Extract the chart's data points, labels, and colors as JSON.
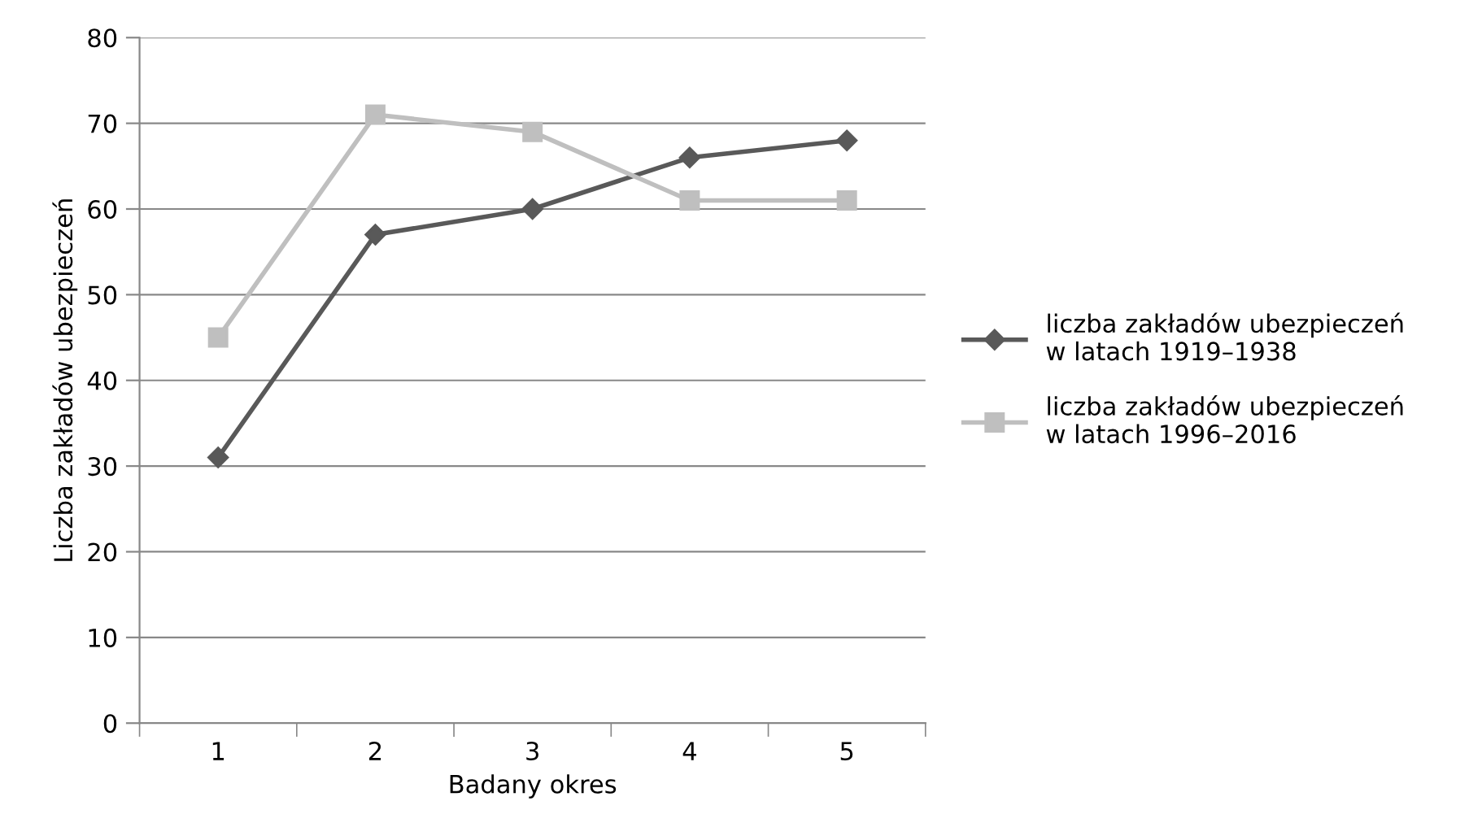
{
  "chart_data": {
    "type": "line",
    "xlabel": "Badany okres",
    "ylabel": "Liczba zakładów ubezpieczeń",
    "categories": [
      "1",
      "2",
      "3",
      "4",
      "5"
    ],
    "series": [
      {
        "name": "liczba zakładów ubezpieczeń\nw latach 1919–1938",
        "color": "#595959",
        "marker": "diamond",
        "values": [
          31,
          57,
          60,
          66,
          68
        ]
      },
      {
        "name": "liczba zakładów ubezpieczeń\nw latach 1996–2016",
        "color": "#bfbfbf",
        "marker": "square",
        "values": [
          45,
          71,
          69,
          61,
          61
        ]
      }
    ],
    "ylim": [
      0,
      80
    ],
    "yticks": [
      0,
      10,
      20,
      30,
      40,
      50,
      60,
      70,
      80
    ],
    "grid": "y",
    "legend": "right",
    "line_style": "solid"
  }
}
